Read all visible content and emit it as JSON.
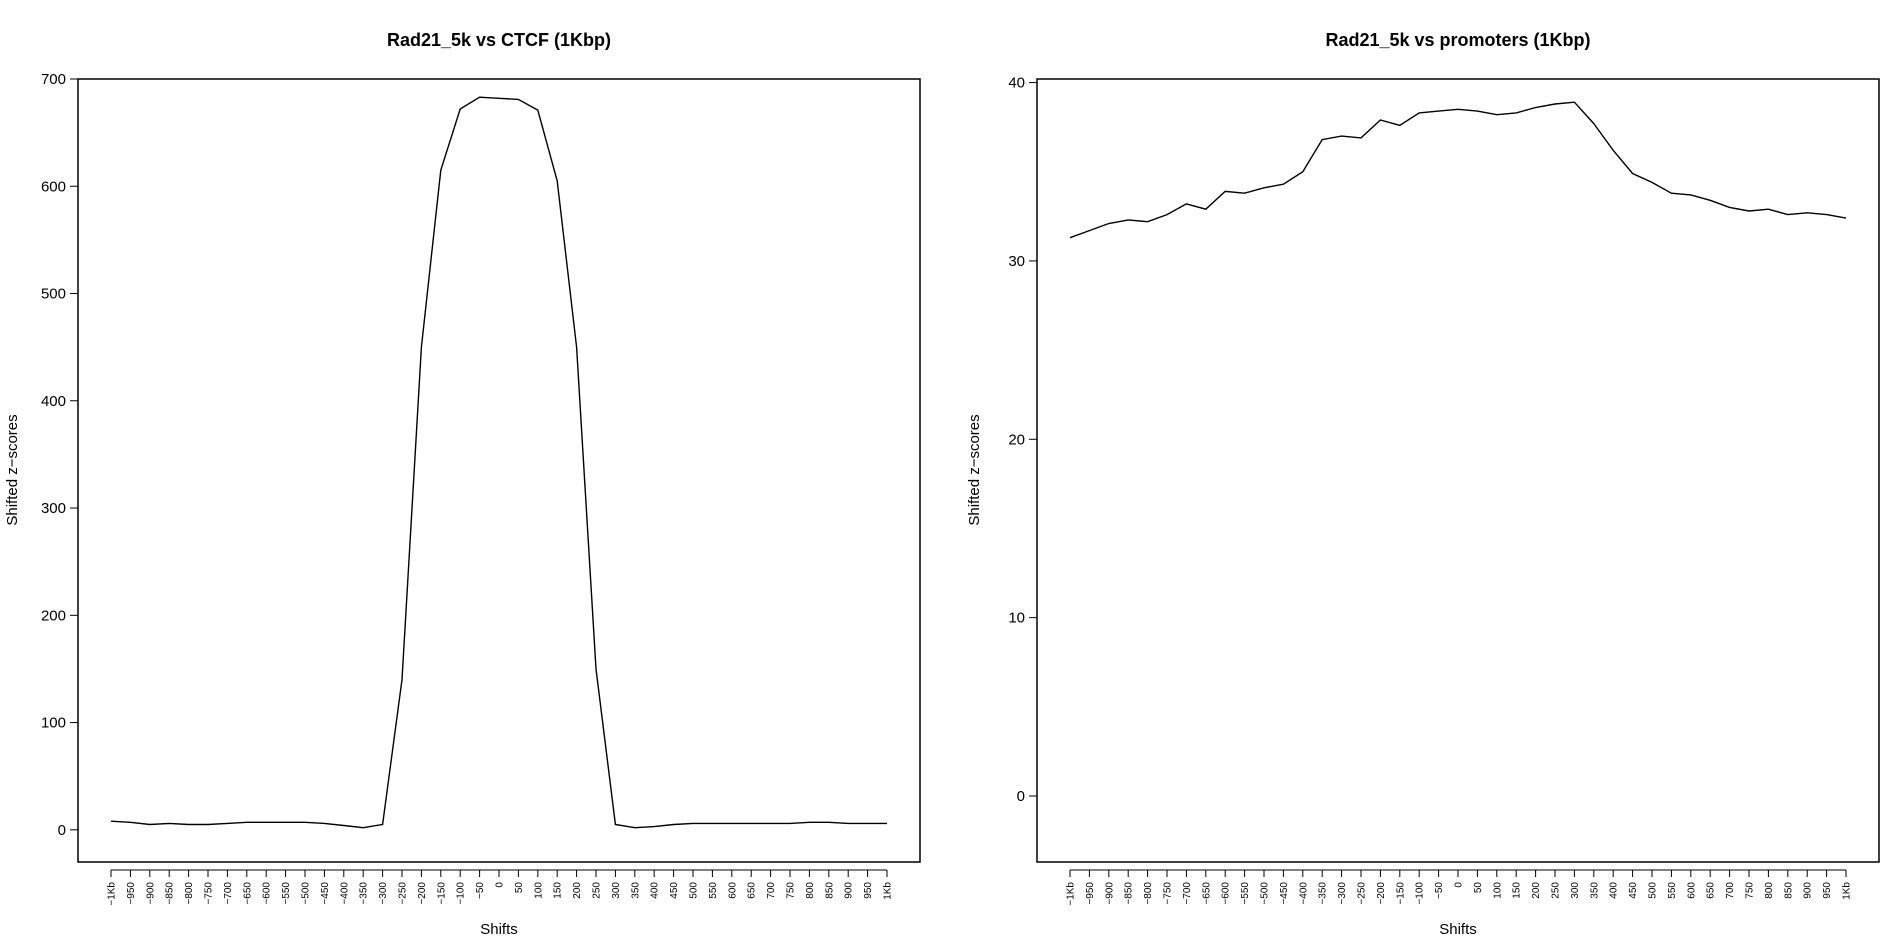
{
  "chart_data": [
    {
      "type": "line",
      "title": "Rad21_5k vs CTCF (1Kbp)",
      "xlabel": "Shifts",
      "ylabel": "Shifted z−scores",
      "categories": [
        "−1Kb",
        "−950",
        "−900",
        "−850",
        "−800",
        "−750",
        "−700",
        "−650",
        "−600",
        "−550",
        "−500",
        "−450",
        "−400",
        "−350",
        "−300",
        "−250",
        "−200",
        "−150",
        "−100",
        "−50",
        "0",
        "50",
        "100",
        "150",
        "200",
        "250",
        "300",
        "350",
        "400",
        "450",
        "500",
        "550",
        "600",
        "650",
        "700",
        "750",
        "800",
        "850",
        "900",
        "950",
        "1Kb"
      ],
      "values": [
        8,
        7,
        5,
        6,
        5,
        5,
        6,
        7,
        7,
        7,
        7,
        6,
        4,
        2,
        5,
        140,
        450,
        615,
        672,
        683,
        682,
        681,
        671,
        605,
        450,
        150,
        5,
        2,
        3,
        5,
        6,
        6,
        6,
        6,
        6,
        6,
        7,
        7,
        6,
        6,
        6
      ],
      "ylim": [
        -30,
        700
      ],
      "yticks": [
        0,
        100,
        200,
        300,
        400,
        500,
        600,
        700
      ],
      "grid": false
    },
    {
      "type": "line",
      "title": "Rad21_5k vs promoters (1Kbp)",
      "xlabel": "Shifts",
      "ylabel": "Shifted z−scores",
      "categories": [
        "−1Kb",
        "−950",
        "−900",
        "−850",
        "−800",
        "−750",
        "−700",
        "−650",
        "−600",
        "−550",
        "−500",
        "−450",
        "−400",
        "−350",
        "−300",
        "−250",
        "−200",
        "−150",
        "−100",
        "−50",
        "0",
        "50",
        "100",
        "150",
        "200",
        "250",
        "300",
        "350",
        "400",
        "450",
        "500",
        "550",
        "600",
        "650",
        "700",
        "750",
        "800",
        "850",
        "900",
        "950",
        "1Kb"
      ],
      "values": [
        31.3,
        31.7,
        32.1,
        32.3,
        32.2,
        32.6,
        33.2,
        32.9,
        33.9,
        33.8,
        34.1,
        34.3,
        35.0,
        36.8,
        37.0,
        36.9,
        37.9,
        37.6,
        38.3,
        38.4,
        38.5,
        38.4,
        38.2,
        38.3,
        38.6,
        38.8,
        38.9,
        37.7,
        36.2,
        34.9,
        34.4,
        33.8,
        33.7,
        33.4,
        33.0,
        32.8,
        32.9,
        32.6,
        32.7,
        32.6,
        32.4
      ],
      "ylim": [
        -3.7,
        40.2
      ],
      "yticks": [
        0,
        10,
        20,
        30,
        40
      ],
      "grid": false
    }
  ]
}
